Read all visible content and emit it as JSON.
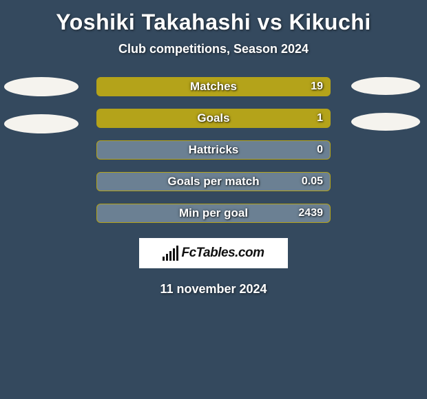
{
  "title": "Yoshiki Takahashi vs Kikuchi",
  "subtitle": "Club competitions, Season 2024",
  "date": "11 november 2024",
  "logo_text": "FcTables.com",
  "background_color": "#34495e",
  "ellipse_color": "#f5f3ee",
  "stats": [
    {
      "label": "Matches",
      "value": "19",
      "fill": 1.0,
      "color_filled": "#b4a31a",
      "color_empty": "#6b8093"
    },
    {
      "label": "Goals",
      "value": "1",
      "fill": 1.0,
      "color_filled": "#b4a31a",
      "color_empty": "#6b8093"
    },
    {
      "label": "Hattricks",
      "value": "0",
      "fill": 0.0,
      "color_filled": "#b4a31a",
      "color_empty": "#6b8093"
    },
    {
      "label": "Goals per match",
      "value": "0.05",
      "fill": 0.0,
      "color_filled": "#b4a31a",
      "color_empty": "#6b8093"
    },
    {
      "label": "Min per goal",
      "value": "2439",
      "fill": 0.0,
      "color_filled": "#b4a31a",
      "color_empty": "#6b8093"
    }
  ],
  "logo_bars_heights": [
    6,
    10,
    14,
    18,
    22
  ]
}
